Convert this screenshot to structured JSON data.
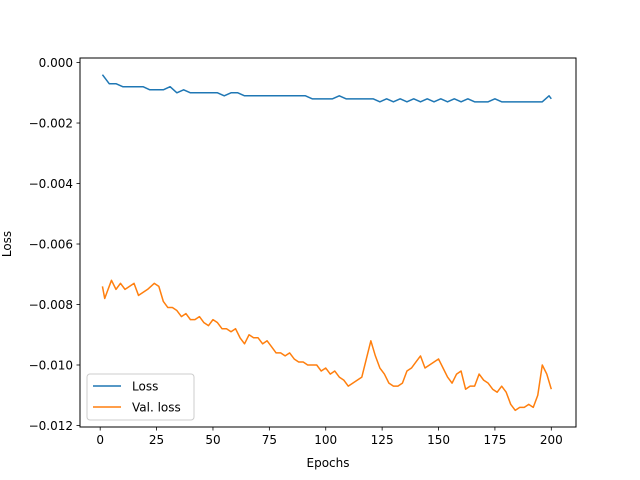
{
  "chart_data": {
    "type": "line",
    "title": "",
    "xlabel": "Epochs",
    "ylabel": "Loss",
    "xlim": [
      -8.95,
      210.95
    ],
    "ylim": [
      -0.01205,
      0.00015
    ],
    "x_ticks": [
      0,
      25,
      50,
      75,
      100,
      125,
      150,
      175,
      200
    ],
    "y_ticks": [
      0.0,
      -0.002,
      -0.004,
      -0.006,
      -0.008,
      -0.01,
      -0.012
    ],
    "y_tick_labels": [
      "0.000",
      "−0.002",
      "−0.004",
      "−0.006",
      "−0.008",
      "−0.010",
      "−0.012"
    ],
    "x_tick_labels": [
      "0",
      "25",
      "50",
      "75",
      "100",
      "125",
      "150",
      "175",
      "200"
    ],
    "grid": false,
    "legend_position": "lower-left",
    "colors": {
      "Loss": "#1f77b4",
      "Val. loss": "#ff7f0e"
    },
    "series": [
      {
        "name": "Loss",
        "x": [
          1,
          4,
          7,
          10,
          13,
          16,
          19,
          22,
          25,
          28,
          31,
          34,
          37,
          40,
          43,
          46,
          49,
          52,
          55,
          58,
          61,
          64,
          67,
          70,
          73,
          76,
          79,
          82,
          85,
          88,
          91,
          94,
          97,
          100,
          103,
          106,
          109,
          112,
          115,
          118,
          121,
          124,
          127,
          130,
          133,
          136,
          139,
          142,
          145,
          148,
          151,
          154,
          157,
          160,
          163,
          166,
          169,
          172,
          175,
          178,
          181,
          184,
          187,
          190,
          193,
          196,
          199,
          200
        ],
        "values": [
          -0.0004,
          -0.0007,
          -0.0007,
          -0.0008,
          -0.0008,
          -0.0008,
          -0.0008,
          -0.0009,
          -0.0009,
          -0.0009,
          -0.0008,
          -0.001,
          -0.0009,
          -0.001,
          -0.001,
          -0.001,
          -0.001,
          -0.001,
          -0.0011,
          -0.001,
          -0.001,
          -0.0011,
          -0.0011,
          -0.0011,
          -0.0011,
          -0.0011,
          -0.0011,
          -0.0011,
          -0.0011,
          -0.0011,
          -0.0011,
          -0.0012,
          -0.0012,
          -0.0012,
          -0.0012,
          -0.0011,
          -0.0012,
          -0.0012,
          -0.0012,
          -0.0012,
          -0.0012,
          -0.0013,
          -0.0012,
          -0.0013,
          -0.0012,
          -0.0013,
          -0.0012,
          -0.0013,
          -0.0012,
          -0.0013,
          -0.0012,
          -0.0013,
          -0.0012,
          -0.0013,
          -0.0012,
          -0.0013,
          -0.0013,
          -0.0013,
          -0.0012,
          -0.0013,
          -0.0013,
          -0.0013,
          -0.0013,
          -0.0013,
          -0.0013,
          -0.0013,
          -0.0011,
          -0.0012
        ]
      },
      {
        "name": "Val. loss",
        "x": [
          1,
          2,
          3,
          5,
          7,
          9,
          11,
          13,
          15,
          17,
          19,
          21,
          24,
          26,
          28,
          30,
          32,
          34,
          36,
          38,
          40,
          42,
          44,
          46,
          48,
          50,
          52,
          54,
          56,
          58,
          60,
          62,
          64,
          66,
          68,
          70,
          72,
          74,
          76,
          78,
          80,
          82,
          84,
          86,
          88,
          90,
          92,
          94,
          96,
          98,
          100,
          102,
          104,
          106,
          108,
          110,
          112,
          114,
          116,
          118,
          120,
          122,
          124,
          126,
          128,
          130,
          132,
          134,
          136,
          138,
          140,
          142,
          144,
          146,
          148,
          150,
          152,
          154,
          156,
          158,
          160,
          162,
          164,
          166,
          168,
          170,
          172,
          174,
          176,
          178,
          180,
          182,
          184,
          186,
          188,
          190,
          192,
          194,
          196,
          198,
          200
        ],
        "values": [
          -0.0074,
          -0.0078,
          -0.0076,
          -0.0072,
          -0.0075,
          -0.0073,
          -0.0075,
          -0.0074,
          -0.0073,
          -0.0077,
          -0.0076,
          -0.0075,
          -0.0073,
          -0.0074,
          -0.0079,
          -0.0081,
          -0.0081,
          -0.0082,
          -0.0084,
          -0.0083,
          -0.0085,
          -0.0085,
          -0.0084,
          -0.0086,
          -0.0087,
          -0.0085,
          -0.0086,
          -0.0088,
          -0.0088,
          -0.0089,
          -0.0088,
          -0.0091,
          -0.0093,
          -0.009,
          -0.0091,
          -0.0091,
          -0.0093,
          -0.0092,
          -0.0094,
          -0.0096,
          -0.0096,
          -0.0097,
          -0.0096,
          -0.0098,
          -0.0099,
          -0.0099,
          -0.01,
          -0.01,
          -0.01,
          -0.0102,
          -0.0101,
          -0.0103,
          -0.0102,
          -0.0104,
          -0.0105,
          -0.0107,
          -0.0106,
          -0.0105,
          -0.0104,
          -0.0098,
          -0.0092,
          -0.0097,
          -0.0101,
          -0.0103,
          -0.0106,
          -0.0107,
          -0.0107,
          -0.0106,
          -0.0102,
          -0.0101,
          -0.0099,
          -0.0097,
          -0.0101,
          -0.01,
          -0.0099,
          -0.0098,
          -0.0101,
          -0.0104,
          -0.0106,
          -0.0103,
          -0.0102,
          -0.0108,
          -0.0107,
          -0.0107,
          -0.0103,
          -0.0105,
          -0.0106,
          -0.0108,
          -0.0109,
          -0.0107,
          -0.0109,
          -0.0113,
          -0.0115,
          -0.0114,
          -0.0114,
          -0.0113,
          -0.0114,
          -0.011,
          -0.01,
          -0.0103,
          -0.0108
        ]
      }
    ]
  }
}
